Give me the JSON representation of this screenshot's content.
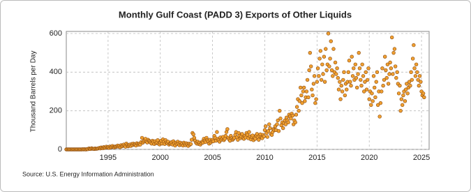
{
  "chart_data": {
    "type": "scatter",
    "title": "Monthly Gulf Coast (PADD 3) Exports of Other Liquids",
    "y_label": "Thousand Barrels per Day",
    "source": "Source: U.S. Energy Information Administration",
    "xlim": [
      1991,
      2025.73
    ],
    "xticks": [
      1995,
      2000,
      2005,
      2010,
      2015,
      2020,
      2025
    ],
    "ylim": [
      0,
      600
    ],
    "yticks": [
      0,
      200,
      400,
      600
    ],
    "grid": true,
    "series": [
      {
        "color": "#f0a030",
        "x": [
          1991,
          1991.08,
          1991.17,
          1991.25,
          1991.33,
          1991.42,
          1991.5,
          1991.58,
          1991.67,
          1991.75,
          1991.83,
          1991.92,
          1992,
          1992.08,
          1992.17,
          1992.25,
          1992.33,
          1992.42,
          1992.5,
          1992.58,
          1992.67,
          1992.75,
          1992.83,
          1992.92,
          1993,
          1993.08,
          1993.17,
          1993.25,
          1993.33,
          1993.42,
          1993.5,
          1993.58,
          1993.67,
          1993.75,
          1993.83,
          1993.92,
          1994,
          1994.08,
          1994.17,
          1994.25,
          1994.33,
          1994.42,
          1994.5,
          1994.58,
          1994.67,
          1994.75,
          1994.83,
          1994.92,
          1995,
          1995.08,
          1995.17,
          1995.25,
          1995.33,
          1995.42,
          1995.5,
          1995.58,
          1995.67,
          1995.75,
          1995.83,
          1995.92,
          1996,
          1996.08,
          1996.17,
          1996.25,
          1996.33,
          1996.42,
          1996.5,
          1996.58,
          1996.67,
          1996.75,
          1996.83,
          1996.92,
          1997,
          1997.08,
          1997.17,
          1997.25,
          1997.33,
          1997.42,
          1997.5,
          1997.58,
          1997.67,
          1997.75,
          1997.83,
          1997.92,
          1998,
          1998.08,
          1998.17,
          1998.25,
          1998.33,
          1998.42,
          1998.5,
          1998.58,
          1998.67,
          1998.75,
          1998.83,
          1998.92,
          1999,
          1999.08,
          1999.17,
          1999.25,
          1999.33,
          1999.42,
          1999.5,
          1999.58,
          1999.67,
          1999.75,
          1999.83,
          1999.92,
          2000,
          2000.08,
          2000.17,
          2000.25,
          2000.33,
          2000.42,
          2000.5,
          2000.58,
          2000.67,
          2000.75,
          2000.83,
          2000.92,
          2001,
          2001.08,
          2001.17,
          2001.25,
          2001.33,
          2001.42,
          2001.5,
          2001.58,
          2001.67,
          2001.75,
          2001.83,
          2001.92,
          2002,
          2002.08,
          2002.17,
          2002.25,
          2002.33,
          2002.42,
          2002.5,
          2002.58,
          2002.67,
          2002.75,
          2002.83,
          2002.92,
          2003,
          2003.08,
          2003.17,
          2003.25,
          2003.33,
          2003.42,
          2003.5,
          2003.58,
          2003.67,
          2003.75,
          2003.83,
          2003.92,
          2004,
          2004.08,
          2004.17,
          2004.25,
          2004.33,
          2004.42,
          2004.5,
          2004.58,
          2004.67,
          2004.75,
          2004.83,
          2004.92,
          2005,
          2005.08,
          2005.17,
          2005.25,
          2005.33,
          2005.42,
          2005.5,
          2005.58,
          2005.67,
          2005.75,
          2005.83,
          2005.92,
          2006,
          2006.08,
          2006.17,
          2006.25,
          2006.33,
          2006.42,
          2006.5,
          2006.58,
          2006.67,
          2006.75,
          2006.83,
          2006.92,
          2007,
          2007.08,
          2007.17,
          2007.25,
          2007.33,
          2007.42,
          2007.5,
          2007.58,
          2007.67,
          2007.75,
          2007.83,
          2007.92,
          2008,
          2008.08,
          2008.17,
          2008.25,
          2008.33,
          2008.42,
          2008.5,
          2008.58,
          2008.67,
          2008.75,
          2008.83,
          2008.92,
          2009,
          2009.08,
          2009.17,
          2009.25,
          2009.33,
          2009.42,
          2009.5,
          2009.58,
          2009.67,
          2009.75,
          2009.83,
          2009.92,
          2010,
          2010.08,
          2010.17,
          2010.25,
          2010.33,
          2010.42,
          2010.5,
          2010.58,
          2010.67,
          2010.75,
          2010.83,
          2010.92,
          2011,
          2011.08,
          2011.17,
          2011.25,
          2011.33,
          2011.42,
          2011.5,
          2011.58,
          2011.67,
          2011.75,
          2011.83,
          2011.92,
          2012,
          2012.08,
          2012.17,
          2012.25,
          2012.33,
          2012.42,
          2012.5,
          2012.58,
          2012.67,
          2012.75,
          2012.83,
          2012.92,
          2013,
          2013.08,
          2013.17,
          2013.25,
          2013.33,
          2013.42,
          2013.5,
          2013.58,
          2013.67,
          2013.75,
          2013.83,
          2013.92,
          2014,
          2014.08,
          2014.17,
          2014.25,
          2014.33,
          2014.42,
          2014.5,
          2014.58,
          2014.67,
          2014.75,
          2014.83,
          2014.92,
          2015,
          2015.08,
          2015.17,
          2015.25,
          2015.33,
          2015.42,
          2015.5,
          2015.58,
          2015.67,
          2015.75,
          2015.83,
          2015.92,
          2016,
          2016.08,
          2016.17,
          2016.25,
          2016.33,
          2016.42,
          2016.5,
          2016.58,
          2016.67,
          2016.75,
          2016.83,
          2016.92,
          2017,
          2017.08,
          2017.17,
          2017.25,
          2017.33,
          2017.42,
          2017.5,
          2017.58,
          2017.67,
          2017.75,
          2017.83,
          2017.92,
          2018,
          2018.08,
          2018.17,
          2018.25,
          2018.33,
          2018.42,
          2018.5,
          2018.58,
          2018.67,
          2018.75,
          2018.83,
          2018.92,
          2019,
          2019.08,
          2019.17,
          2019.25,
          2019.33,
          2019.42,
          2019.5,
          2019.58,
          2019.67,
          2019.75,
          2019.83,
          2019.92,
          2020,
          2020.08,
          2020.17,
          2020.25,
          2020.33,
          2020.42,
          2020.5,
          2020.58,
          2020.67,
          2020.75,
          2020.83,
          2020.92,
          2021,
          2021.08,
          2021.17,
          2021.25,
          2021.33,
          2021.42,
          2021.5,
          2021.58,
          2021.67,
          2021.75,
          2021.83,
          2021.92,
          2022,
          2022.08,
          2022.17,
          2022.25,
          2022.33,
          2022.42,
          2022.5,
          2022.58,
          2022.67,
          2022.75,
          2022.83,
          2022.92,
          2023,
          2023.08,
          2023.17,
          2023.25,
          2023.33,
          2023.42,
          2023.5,
          2023.58,
          2023.67,
          2023.75,
          2023.83,
          2023.92,
          2024,
          2024.08,
          2024.17,
          2024.25,
          2024.33,
          2024.42,
          2024.5,
          2024.58,
          2024.67,
          2024.75,
          2024.83,
          2024.92,
          2025,
          2025.08,
          2025.17,
          2025.25
        ],
        "values": [
          0,
          0,
          0,
          0,
          0,
          0,
          0,
          0,
          0,
          0,
          0,
          0,
          0,
          0,
          0,
          0,
          0,
          0,
          0,
          1,
          0,
          1,
          0,
          0,
          2,
          1,
          5,
          3,
          2,
          6,
          4,
          3,
          2,
          5,
          3,
          4,
          4,
          6,
          8,
          5,
          10,
          7,
          6,
          12,
          8,
          9,
          14,
          10,
          12,
          8,
          15,
          10,
          14,
          18,
          12,
          10,
          15,
          13,
          16,
          20,
          14,
          18,
          12,
          22,
          16,
          20,
          25,
          18,
          14,
          30,
          22,
          16,
          20,
          25,
          18,
          28,
          22,
          30,
          24,
          26,
          20,
          32,
          28,
          24,
          30,
          25,
          38,
          60,
          35,
          42,
          48,
          55,
          40,
          36,
          50,
          45,
          40,
          35,
          30,
          45,
          38,
          28,
          42,
          32,
          36,
          48,
          30,
          26,
          35,
          45,
          30,
          52,
          40,
          28,
          48,
          36,
          32,
          40,
          25,
          30,
          30,
          38,
          25,
          42,
          32,
          20,
          35,
          28,
          40,
          30,
          22,
          35,
          25,
          30,
          20,
          35,
          28,
          22,
          32,
          26,
          18,
          30,
          24,
          28,
          50,
          85,
          78,
          60,
          45,
          35,
          30,
          40,
          28,
          35,
          25,
          32,
          40,
          35,
          55,
          45,
          38,
          60,
          48,
          42,
          30,
          50,
          36,
          44,
          50,
          42,
          70,
          60,
          45,
          90,
          55,
          48,
          40,
          62,
          50,
          56,
          65,
          48,
          55,
          70,
          90,
          105,
          60,
          52,
          45,
          70,
          58,
          50,
          55,
          60,
          75,
          90,
          62,
          50,
          85,
          70,
          58,
          66,
          80,
          60,
          55,
          70,
          62,
          85,
          75,
          58,
          90,
          68,
          52,
          64,
          72,
          48,
          60,
          55,
          72,
          80,
          65,
          50,
          70,
          78,
          62,
          58,
          75,
          68,
          100,
          120,
          85,
          65,
          95,
          130,
          110,
          80,
          75,
          90,
          105,
          100,
          120,
          100,
          130,
          150,
          95,
          200,
          160,
          125,
          140,
          110,
          135,
          150,
          130,
          165,
          150,
          140,
          180,
          170,
          160,
          185,
          175,
          130,
          150,
          140,
          180,
          220,
          260,
          200,
          250,
          320,
          280,
          240,
          300,
          320,
          250,
          270,
          300,
          360,
          270,
          410,
          500,
          430,
          310,
          280,
          340,
          380,
          240,
          260,
          350,
          420,
          380,
          470,
          510,
          360,
          440,
          390,
          480,
          350,
          520,
          410,
          440,
          600,
          430,
          470,
          560,
          410,
          380,
          520,
          400,
          450,
          390,
          420,
          370,
          310,
          350,
          260,
          330,
          300,
          360,
          400,
          280,
          340,
          310,
          350,
          400,
          460,
          350,
          330,
          480,
          380,
          420,
          360,
          440,
          370,
          320,
          390,
          500,
          420,
          360,
          330,
          440,
          380,
          300,
          350,
          400,
          310,
          360,
          420,
          260,
          300,
          230,
          290,
          250,
          380,
          320,
          270,
          350,
          400,
          230,
          300,
          170,
          240,
          300,
          420,
          330,
          360,
          480,
          410,
          370,
          440,
          340,
          390,
          450,
          420,
          580,
          390,
          500,
          520,
          430,
          370,
          400,
          340,
          290,
          330,
          200,
          260,
          230,
          280,
          300,
          250,
          310,
          340,
          290,
          320,
          350,
          330,
          400,
          360,
          470,
          540,
          420,
          380,
          440,
          400,
          360,
          330,
          380,
          350,
          300,
          280,
          290,
          270
        ]
      }
    ]
  }
}
